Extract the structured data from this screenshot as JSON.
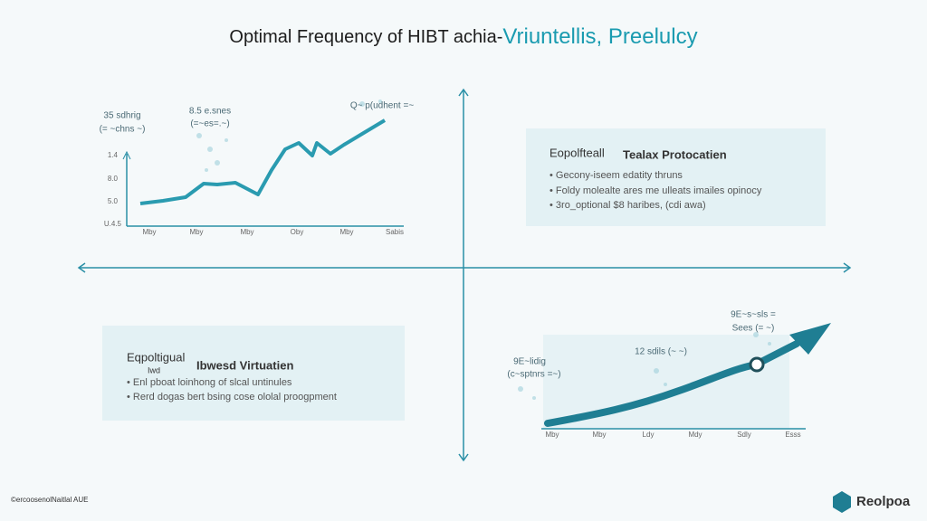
{
  "header": {
    "title_dark": "Optimal Frequency of HIBT achia-",
    "title_teal": "Vriuntellis, Preelulcy"
  },
  "top_chart": {
    "annotations": [
      "35 sdhrig",
      "(= ~chns ~)",
      "8.5 e.snes",
      "(=~es=.~)",
      "Q~ p(udhent =~"
    ],
    "yticks": [
      "1.4",
      "8.0",
      "5.0",
      "U.4.5"
    ],
    "xticks": [
      "Mby",
      "Mby",
      "Mby",
      "Oby",
      "Mby",
      "Sabis"
    ]
  },
  "top_box": {
    "tag": "Eopolfteall",
    "title": "Tealax Protocatien",
    "bullets": [
      "Gecony-iseem edatity thruns",
      "Foldy molealte ares me ulleats imailes opinocy",
      "3ro_optional $8 haribes, (cdi awa)"
    ]
  },
  "bottom_box": {
    "tag": "Eqpoltigual",
    "tag2": "Iwd",
    "title": "Ibwesd Virtuatien",
    "bullets": [
      "Enl pboat loinhong of slcal untinules",
      "Rerd dogas bert bsing cose ololal proogpment"
    ]
  },
  "bottom_chart": {
    "annotations": [
      "9E~lidig",
      "(c~sptnrs =~)",
      "12 sdils (~ ~)",
      "9E~s~sls =",
      "Sees (= ~)"
    ],
    "xticks": [
      "Mby",
      "Mby",
      "Ldy",
      "Mdy",
      "Sdly",
      "Esss"
    ]
  },
  "footer": {
    "copyright": "©ercoosenolNaitlal AUE",
    "brand": "Reolpoa"
  }
}
